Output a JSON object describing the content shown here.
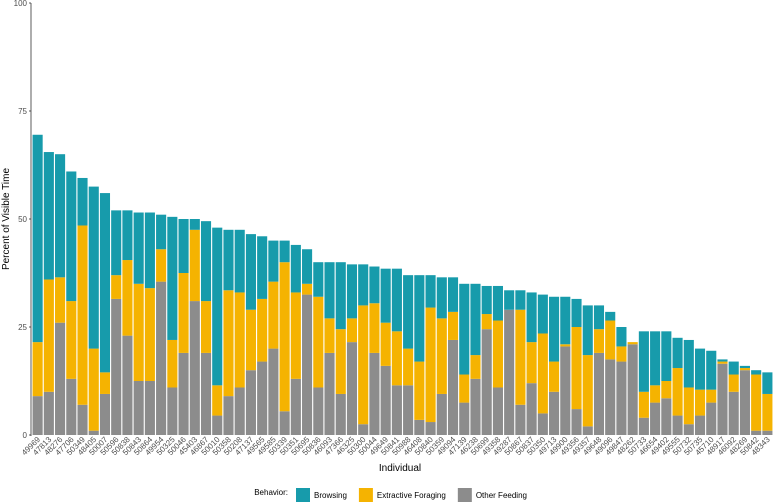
{
  "chart_data": {
    "type": "stacked_bar",
    "x_label": "Individual",
    "y_label": "Percent of Visible Time",
    "legend_title": "Behavior:",
    "categories": [
      "49969",
      "47813",
      "48276",
      "47706",
      "50349",
      "48405",
      "50007",
      "50596",
      "50838",
      "50843",
      "50864",
      "49954",
      "50325",
      "50046",
      "45403",
      "46867",
      "50010",
      "50358",
      "50208",
      "47137",
      "49565",
      "49585",
      "50339",
      "50351",
      "50695",
      "50836",
      "46093",
      "47366",
      "46325",
      "50300",
      "50044",
      "49649",
      "50841",
      "50988",
      "46408",
      "50840",
      "50359",
      "49094",
      "47139",
      "46238",
      "50699",
      "49358",
      "49287",
      "50867",
      "50837",
      "50350",
      "49713",
      "49900",
      "49356",
      "49357",
      "49648",
      "49096",
      "49847",
      "48262",
      "50733",
      "46654",
      "49402",
      "49555",
      "50732",
      "50735",
      "45710",
      "48917",
      "46092",
      "48269",
      "50842",
      "48343"
    ],
    "series": [
      {
        "name": "Browsing",
        "color": "#179bab",
        "values": [
          48,
          29.5,
          28.5,
          30,
          11,
          37.5,
          41.5,
          15,
          11.5,
          16.5,
          17.5,
          8,
          28.5,
          12.5,
          2.5,
          18.5,
          36.5,
          14,
          14.5,
          17.5,
          14.5,
          9.5,
          5,
          11,
          8,
          8,
          13,
          15.5,
          12.5,
          9.5,
          8.5,
          12.5,
          14.5,
          17,
          20,
          7.5,
          9.5,
          8,
          21,
          16.5,
          6.5,
          8,
          4.5,
          4.5,
          11.5,
          9,
          15,
          11,
          6.5,
          11.5,
          5.5,
          2,
          4.5,
          0,
          14,
          12.5,
          11.5,
          7,
          11,
          9.5,
          9,
          0.5,
          3,
          0.5,
          1,
          5
        ]
      },
      {
        "name": "Extractive Foraging",
        "color": "#f5b301",
        "values": [
          12.5,
          26,
          10.5,
          18,
          41.5,
          19,
          5,
          5.5,
          17.5,
          22.5,
          21.5,
          7.5,
          11,
          18.5,
          16.5,
          12,
          7,
          24.5,
          22,
          14,
          14.5,
          15.5,
          34.5,
          20,
          2.5,
          21,
          8,
          15,
          5.5,
          27.5,
          11.5,
          10,
          12.5,
          8.5,
          13.5,
          26.5,
          17.5,
          6.5,
          6.5,
          5.5,
          3.5,
          15.5,
          0,
          22,
          9.5,
          18.5,
          7,
          0.5,
          19,
          16.5,
          5.5,
          9,
          3.5,
          0.5,
          6,
          4,
          4,
          11,
          8.5,
          6,
          3,
          0.5,
          4,
          0.5,
          13,
          8.5
        ]
      },
      {
        "name": "Other Feeding",
        "color": "#8c8c8c",
        "values": [
          9,
          10,
          26,
          13,
          7,
          1,
          9.5,
          31.5,
          23,
          12.5,
          12.5,
          35.5,
          11,
          19,
          31,
          19,
          4.5,
          9,
          11,
          15,
          17,
          20,
          5.5,
          13,
          32.5,
          11,
          19,
          9.5,
          21.5,
          2.5,
          19,
          16,
          11.5,
          11.5,
          3.5,
          3,
          9.5,
          22,
          7.5,
          13,
          24.5,
          11,
          29,
          7,
          12,
          5,
          10,
          20.5,
          6,
          2,
          19,
          17.5,
          17,
          21,
          4,
          7.5,
          8.5,
          4.5,
          2.5,
          4.5,
          7.5,
          16.5,
          10,
          15,
          1,
          1
        ]
      }
    ],
    "ylim": [
      0,
      100
    ],
    "yticks": [
      0,
      25,
      50,
      75,
      100
    ]
  }
}
